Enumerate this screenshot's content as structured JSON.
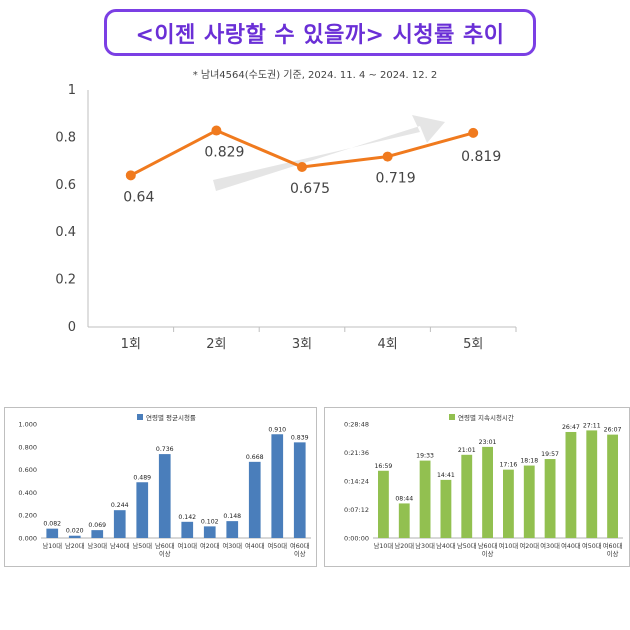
{
  "header": {
    "title": "<이젠 사랑할 수 있을까> 시청률 추이",
    "subtitle": "* 남녀4564(수도권) 기준, 2024. 11. 4 ~ 2024. 12. 2"
  },
  "colors": {
    "title_border": "#7b3fe4",
    "line": "#f07a1e",
    "arrow": "#e2e2e2",
    "bar_blue": "#4a7ebb",
    "bar_green": "#92c050"
  },
  "chart_data": [
    {
      "type": "line",
      "title": "",
      "x": [
        "1회",
        "2회",
        "3회",
        "4회",
        "5회"
      ],
      "series": [
        {
          "values": [
            0.64,
            0.829,
            0.675,
            0.719,
            0.819
          ]
        }
      ],
      "data_labels": [
        "0.64",
        "0.829",
        "0.675",
        "0.719",
        "0.819"
      ],
      "ylim": [
        0,
        1
      ],
      "yticks": [
        "0",
        "0.2",
        "0.4",
        "0.6",
        "0.8",
        "1"
      ],
      "grid": false,
      "annotation": "upward trend arrow"
    },
    {
      "type": "bar",
      "categories": [
        "남10대",
        "남20대",
        "남30대",
        "남40대",
        "남50대",
        "남60대\n이상",
        "여10대",
        "여20대",
        "여30대",
        "여40대",
        "여50대",
        "여60대\n이상"
      ],
      "series": [
        {
          "name": "연령별 평균시청률",
          "values": [
            0.082,
            0.02,
            0.069,
            0.244,
            0.489,
            0.736,
            0.142,
            0.102,
            0.148,
            0.668,
            0.91,
            0.839
          ]
        }
      ],
      "data_labels": [
        "0.082",
        "0.020",
        "0.069",
        "0.244",
        "0.489",
        "0.736",
        "0.142",
        "0.102",
        "0.148",
        "0.668",
        "0.910",
        "0.839"
      ],
      "ylim": [
        0,
        1
      ],
      "yticks": [
        "0.000",
        "0.200",
        "0.400",
        "0.600",
        "0.800",
        "1.000"
      ],
      "legend": "top-center"
    },
    {
      "type": "bar",
      "categories": [
        "남10대",
        "남20대",
        "남30대",
        "남40대",
        "남50대",
        "남60대\n이상",
        "여10대",
        "여20대",
        "여30대",
        "여40대",
        "여50대",
        "여60대\n이상"
      ],
      "series": [
        {
          "name": "연령별 지속시청시간",
          "values": [
            "16:59",
            "08:44",
            "19:33",
            "14:41",
            "21:01",
            "23:01",
            "17:16",
            "18:18",
            "19:57",
            "26:47",
            "27:11",
            "26:07"
          ]
        }
      ],
      "data_labels": [
        "16:59",
        "08:44",
        "19:33",
        "14:41",
        "21:01",
        "23:01",
        "17:16",
        "18:18",
        "19:57",
        "26:47",
        "27:11",
        "26:07"
      ],
      "ylim": [
        "0:00:00",
        "0:28:48"
      ],
      "yticks": [
        "0:00:00",
        "0:07:12",
        "0:14:24",
        "0:21:36",
        "0:28:48"
      ],
      "legend": "top-center"
    }
  ]
}
